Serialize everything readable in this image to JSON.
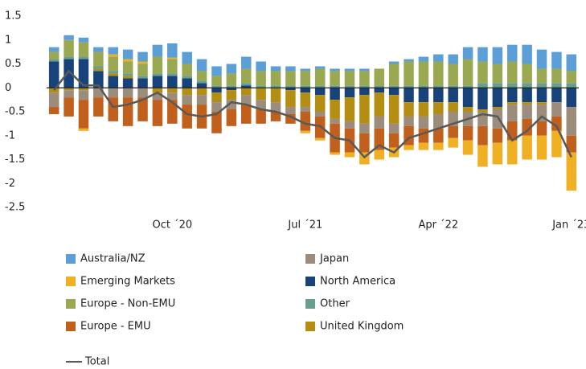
{
  "chart_data": {
    "type": "bar",
    "categories": [
      null,
      null,
      null,
      null,
      null,
      null,
      null,
      null,
      "Oct ´20",
      null,
      null,
      null,
      null,
      null,
      null,
      null,
      null,
      "Jul ´21",
      null,
      null,
      null,
      null,
      null,
      null,
      null,
      null,
      "Apr ´22",
      null,
      null,
      null,
      null,
      null,
      null,
      null,
      null,
      "Jan ´23"
    ],
    "stacked": true,
    "series": [
      {
        "name": "Australia/NZ",
        "color": "#5b9fd6",
        "values": [
          0.1,
          0.1,
          0.1,
          0.1,
          0.15,
          0.2,
          0.2,
          0.25,
          0.3,
          0.25,
          0.25,
          0.2,
          0.2,
          0.25,
          0.2,
          0.1,
          0.1,
          0.05,
          0.05,
          0.05,
          0.05,
          0.05,
          0,
          0.05,
          0.05,
          0.1,
          0.15,
          0.2,
          0.25,
          0.3,
          0.35,
          0.35,
          0.4,
          0.4,
          0.35,
          0.35
        ]
      },
      {
        "name": "Emerging Markets",
        "color": "#efb024",
        "values": [
          0,
          0,
          -0.05,
          0,
          0.05,
          0.05,
          0.05,
          0,
          0.03,
          0,
          0,
          0,
          0,
          0,
          0,
          0,
          0,
          -0.05,
          -0.05,
          -0.05,
          -0.1,
          -0.25,
          -0.2,
          -0.2,
          -0.1,
          -0.15,
          -0.15,
          -0.2,
          -0.3,
          -0.45,
          -0.45,
          -0.5,
          -0.5,
          -0.5,
          -0.55,
          -0.8
        ]
      },
      {
        "name": "Europe - Non-EMU",
        "color": "#9aa852",
        "values": [
          0.15,
          0.35,
          0.3,
          0.3,
          0.3,
          0.25,
          0.25,
          0.35,
          0.3,
          0.25,
          0.2,
          0.2,
          0.25,
          0.3,
          0.3,
          0.3,
          0.3,
          0.3,
          0.35,
          0.3,
          0.3,
          0.3,
          0.35,
          0.45,
          0.5,
          0.5,
          0.5,
          0.45,
          0.55,
          0.45,
          0.4,
          0.45,
          0.4,
          0.3,
          0.3,
          0.25
        ]
      },
      {
        "name": "Europe - EMU",
        "color": "#c0601c",
        "values": [
          -0.15,
          -0.4,
          -0.6,
          -0.4,
          -0.5,
          -0.6,
          -0.5,
          -0.55,
          -0.5,
          -0.5,
          -0.5,
          -0.45,
          -0.35,
          -0.4,
          -0.3,
          -0.2,
          -0.2,
          -0.4,
          -0.45,
          -0.6,
          -0.5,
          -0.4,
          -0.45,
          -0.3,
          -0.4,
          -0.3,
          -0.3,
          -0.25,
          -0.3,
          -0.4,
          -0.3,
          -0.4,
          -0.35,
          -0.3,
          -0.3,
          -0.35
        ]
      },
      {
        "name": "Japan",
        "color": "#9c8c7b",
        "values": [
          -0.3,
          -0.15,
          -0.2,
          -0.2,
          -0.2,
          -0.2,
          -0.2,
          -0.15,
          -0.15,
          -0.2,
          -0.2,
          -0.2,
          -0.2,
          -0.2,
          -0.2,
          -0.2,
          -0.15,
          -0.1,
          -0.1,
          -0.1,
          -0.15,
          -0.2,
          -0.25,
          -0.2,
          -0.2,
          -0.25,
          -0.3,
          -0.3,
          -0.3,
          -0.3,
          -0.4,
          -0.35,
          -0.3,
          -0.35,
          -0.3,
          -0.6
        ]
      },
      {
        "name": "North America",
        "color": "#17437a",
        "values": [
          0.55,
          0.6,
          0.6,
          0.35,
          0.25,
          0.2,
          0.2,
          0.25,
          0.25,
          0.2,
          0.1,
          -0.1,
          -0.05,
          0.05,
          0,
          0,
          -0.05,
          -0.1,
          -0.15,
          -0.25,
          -0.2,
          -0.15,
          -0.1,
          -0.15,
          -0.3,
          -0.3,
          -0.3,
          -0.3,
          -0.4,
          -0.45,
          -0.4,
          -0.3,
          -0.3,
          -0.3,
          -0.3,
          -0.4
        ]
      },
      {
        "name": "Other",
        "color": "#6a9e8c",
        "values": [
          0.05,
          0.05,
          0.05,
          0.05,
          0.05,
          0.05,
          0.05,
          0.05,
          0.05,
          0.05,
          0.05,
          0.05,
          0.05,
          0.05,
          0.05,
          0.05,
          0.05,
          0.05,
          0.05,
          0.05,
          0.05,
          0.05,
          0.05,
          0.05,
          0.05,
          0.05,
          0.05,
          0.05,
          0.05,
          0.1,
          0.1,
          0.1,
          0.1,
          0.1,
          0.1,
          0.1
        ]
      },
      {
        "name": "United Kingdom",
        "color": "#b38e12",
        "values": [
          -0.1,
          -0.05,
          -0.05,
          0.05,
          0.05,
          0.05,
          0,
          -0.1,
          -0.1,
          -0.15,
          -0.15,
          -0.2,
          -0.2,
          -0.15,
          -0.25,
          -0.3,
          -0.35,
          -0.3,
          -0.35,
          -0.4,
          -0.5,
          -0.6,
          -0.5,
          -0.6,
          -0.3,
          -0.3,
          -0.25,
          -0.2,
          -0.1,
          -0.05,
          -0.05,
          -0.05,
          -0.05,
          -0.05,
          0,
          0
        ]
      },
      {
        "name": "Total",
        "type": "line",
        "color": "#595959",
        "values": [
          -0.05,
          0.35,
          0.05,
          0.05,
          -0.4,
          -0.35,
          -0.25,
          -0.1,
          -0.3,
          -0.55,
          -0.6,
          -0.55,
          -0.3,
          -0.35,
          -0.45,
          -0.5,
          -0.6,
          -0.75,
          -0.8,
          -1.05,
          -1.1,
          -1.45,
          -1.2,
          -1.35,
          -1.05,
          -0.95,
          -0.85,
          -0.75,
          -0.65,
          -0.55,
          -0.6,
          -1.1,
          -0.9,
          -0.6,
          -0.8,
          -1.45
        ]
      }
    ],
    "ylim": [
      -2.5,
      1.5
    ],
    "yticks": [
      1.5,
      1,
      0.5,
      0,
      -0.5,
      -1,
      -1.5,
      -2,
      -2.5
    ],
    "grid": false
  }
}
